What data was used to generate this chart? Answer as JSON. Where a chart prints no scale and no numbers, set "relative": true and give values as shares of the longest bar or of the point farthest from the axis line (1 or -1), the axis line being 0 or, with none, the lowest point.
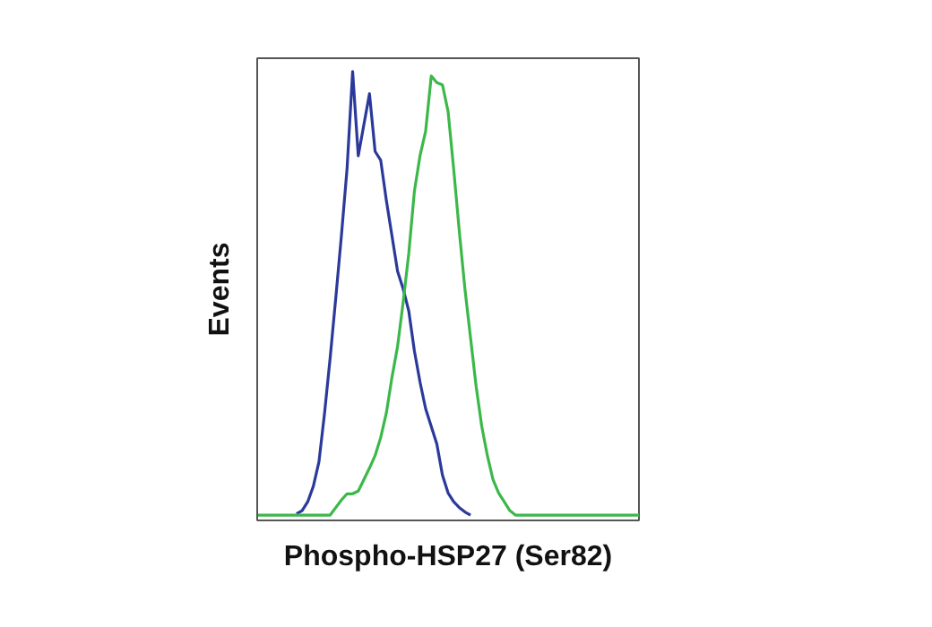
{
  "chart_data": {
    "type": "line",
    "relative": true,
    "xlabel": "Phospho-HSP27 (Ser82)",
    "ylabel": "Events",
    "categories": [
      null,
      null,
      null,
      null,
      null,
      null,
      null,
      null,
      null,
      null,
      null,
      null,
      null,
      null,
      null,
      null,
      null,
      null,
      null,
      null,
      null,
      null,
      null,
      null,
      null,
      null,
      null,
      null,
      null,
      null,
      null,
      null,
      null,
      null,
      null,
      null,
      null,
      null,
      null,
      null,
      null,
      null,
      null,
      null,
      null,
      null,
      null,
      null,
      null,
      null,
      null,
      null,
      null,
      null,
      null,
      null,
      null,
      null,
      null,
      null,
      null,
      null,
      null,
      null,
      null,
      null,
      null,
      null,
      null
    ],
    "series": [
      {
        "color": "#2b3a9a",
        "values": [
          null,
          null,
          null,
          null,
          null,
          null,
          null,
          0.003,
          0.01,
          0.03,
          0.065,
          0.12,
          0.23,
          0.355,
          0.49,
          0.63,
          0.78,
          1.0,
          0.81,
          0.88,
          0.95,
          0.82,
          0.8,
          0.71,
          0.63,
          0.55,
          0.51,
          0.46,
          0.37,
          0.3,
          0.24,
          0.2,
          0.16,
          0.09,
          0.05,
          0.03,
          0.017,
          0.007,
          0,
          null,
          null,
          null,
          null,
          null,
          null,
          null,
          null,
          null,
          null,
          null,
          null,
          null,
          null,
          null,
          null,
          null,
          null,
          null,
          null,
          null,
          null,
          null,
          null,
          null,
          null,
          null,
          null,
          null,
          null
        ]
      },
      {
        "color": "#3cb84a",
        "values": [
          0,
          0,
          0,
          0,
          0,
          0,
          0,
          0,
          0,
          0,
          0,
          0,
          0,
          0,
          0.017,
          0.034,
          0.048,
          0.048,
          0.054,
          0.08,
          0.106,
          0.134,
          0.175,
          0.23,
          0.31,
          0.38,
          0.48,
          0.59,
          0.73,
          0.81,
          0.865,
          0.99,
          0.975,
          0.97,
          0.91,
          0.78,
          0.64,
          0.51,
          0.4,
          0.29,
          0.2,
          0.134,
          0.08,
          0.05,
          0.03,
          0.01,
          0,
          0,
          0,
          0,
          0,
          0,
          0,
          0,
          0,
          0,
          0,
          0,
          0,
          0,
          0,
          0,
          0,
          0,
          0,
          0,
          0,
          0,
          0
        ]
      }
    ],
    "grid": false
  }
}
